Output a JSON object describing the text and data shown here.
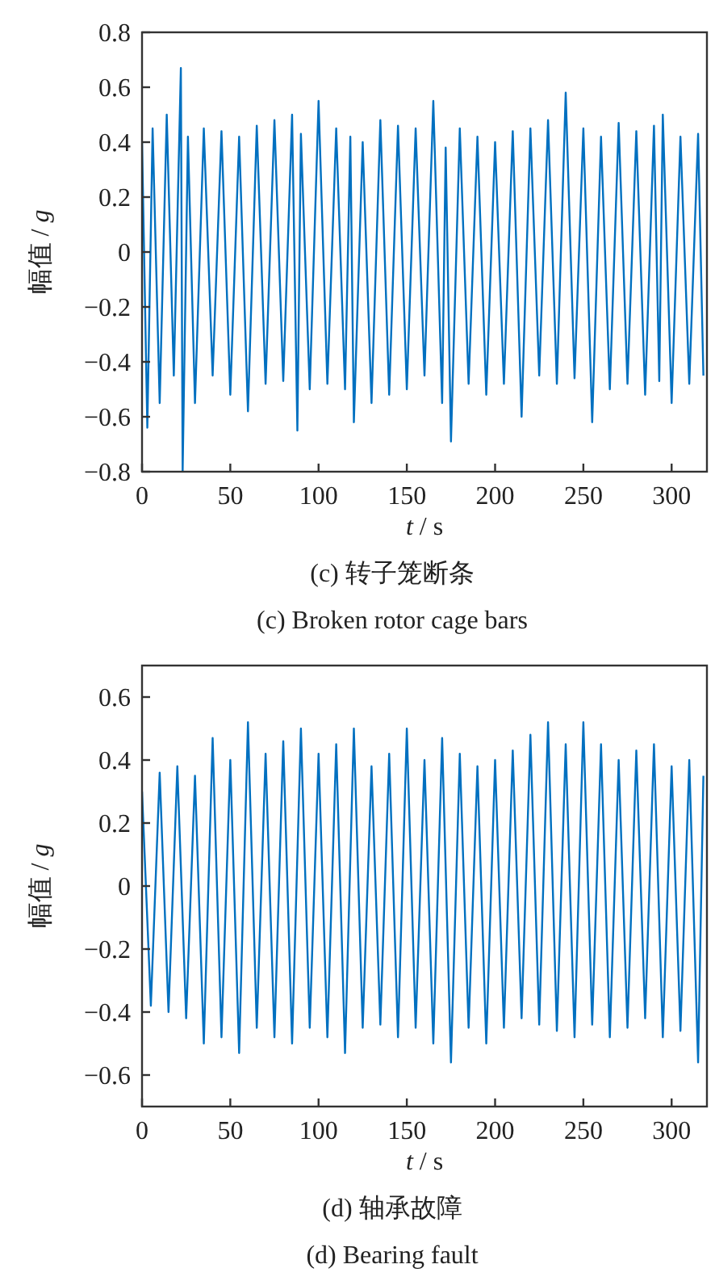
{
  "chart_data": [
    {
      "type": "line",
      "xlabel": "*t* / s",
      "ylabel": "幅值 / *g*",
      "xlim": [
        0,
        320
      ],
      "ylim": [
        -0.8,
        0.8
      ],
      "xticks": [
        0,
        50,
        100,
        150,
        200,
        250,
        300
      ],
      "yticks": [
        {
          "value": -0.8,
          "label": "−0.8"
        },
        {
          "value": -0.6,
          "label": "−0.6"
        },
        {
          "value": -0.4,
          "label": "−0.4"
        },
        {
          "value": -0.2,
          "label": "−0.2"
        },
        0,
        0.2,
        0.4,
        0.6,
        0.8
      ],
      "annotations": [
        "(c)  转子笼断条",
        "(c)  Broken rotor cage bars"
      ],
      "series": [
        {
          "color": "#0070c0",
          "x": [
            0,
            3,
            6,
            10,
            14,
            18,
            22,
            23,
            26,
            30,
            35,
            40,
            45,
            50,
            55,
            60,
            65,
            70,
            75,
            80,
            85,
            88,
            90,
            95,
            100,
            105,
            110,
            115,
            118,
            120,
            125,
            130,
            135,
            140,
            145,
            150,
            155,
            160,
            165,
            170,
            172,
            175,
            180,
            185,
            190,
            195,
            200,
            205,
            210,
            215,
            220,
            225,
            230,
            235,
            240,
            245,
            250,
            255,
            260,
            265,
            270,
            275,
            280,
            285,
            290,
            293,
            295,
            300,
            305,
            310,
            315,
            318
          ],
          "values": [
            0.4,
            -0.64,
            0.45,
            -0.55,
            0.5,
            -0.45,
            0.67,
            -0.8,
            0.42,
            -0.55,
            0.45,
            -0.45,
            0.44,
            -0.52,
            0.42,
            -0.58,
            0.46,
            -0.48,
            0.48,
            -0.47,
            0.5,
            -0.65,
            0.43,
            -0.5,
            0.55,
            -0.48,
            0.45,
            -0.5,
            0.42,
            -0.62,
            0.4,
            -0.55,
            0.48,
            -0.52,
            0.46,
            -0.5,
            0.45,
            -0.45,
            0.55,
            -0.55,
            0.38,
            -0.69,
            0.45,
            -0.48,
            0.42,
            -0.52,
            0.4,
            -0.48,
            0.44,
            -0.6,
            0.45,
            -0.45,
            0.48,
            -0.48,
            0.58,
            -0.46,
            0.45,
            -0.62,
            0.42,
            -0.5,
            0.47,
            -0.48,
            0.44,
            -0.52,
            0.46,
            -0.47,
            0.5,
            -0.55,
            0.42,
            -0.48,
            0.43,
            -0.45
          ]
        }
      ]
    },
    {
      "type": "line",
      "xlabel": "*t* / s",
      "ylabel": "幅值 / *g*",
      "xlim": [
        0,
        320
      ],
      "ylim": [
        -0.7,
        0.7
      ],
      "xticks": [
        0,
        50,
        100,
        150,
        200,
        250,
        300
      ],
      "yticks": [
        {
          "value": -0.6,
          "label": "−0.6"
        },
        {
          "value": -0.4,
          "label": "−0.4"
        },
        {
          "value": -0.2,
          "label": "−0.2"
        },
        0,
        0.2,
        0.4,
        0.6
      ],
      "annotations": [
        "(d)  轴承故障",
        "(d)  Bearing fault"
      ],
      "series": [
        {
          "color": "#0070c0",
          "x": [
            0,
            5,
            10,
            15,
            20,
            25,
            30,
            35,
            40,
            45,
            50,
            55,
            60,
            65,
            70,
            75,
            80,
            85,
            90,
            95,
            100,
            105,
            110,
            115,
            120,
            125,
            130,
            135,
            140,
            145,
            150,
            155,
            160,
            165,
            170,
            175,
            180,
            185,
            190,
            195,
            200,
            205,
            210,
            215,
            220,
            225,
            230,
            235,
            240,
            245,
            250,
            255,
            260,
            265,
            270,
            275,
            280,
            285,
            290,
            295,
            300,
            305,
            310,
            315,
            318
          ],
          "values": [
            0.3,
            -0.38,
            0.36,
            -0.4,
            0.38,
            -0.42,
            0.35,
            -0.5,
            0.47,
            -0.48,
            0.4,
            -0.53,
            0.52,
            -0.45,
            0.42,
            -0.48,
            0.46,
            -0.5,
            0.5,
            -0.45,
            0.42,
            -0.48,
            0.45,
            -0.53,
            0.5,
            -0.45,
            0.38,
            -0.44,
            0.42,
            -0.48,
            0.5,
            -0.45,
            0.4,
            -0.5,
            0.47,
            -0.56,
            0.42,
            -0.45,
            0.38,
            -0.5,
            0.4,
            -0.45,
            0.43,
            -0.42,
            0.48,
            -0.44,
            0.52,
            -0.46,
            0.45,
            -0.48,
            0.52,
            -0.44,
            0.45,
            -0.48,
            0.4,
            -0.45,
            0.43,
            -0.42,
            0.45,
            -0.48,
            0.38,
            -0.46,
            0.4,
            -0.56,
            0.35
          ]
        }
      ]
    }
  ]
}
